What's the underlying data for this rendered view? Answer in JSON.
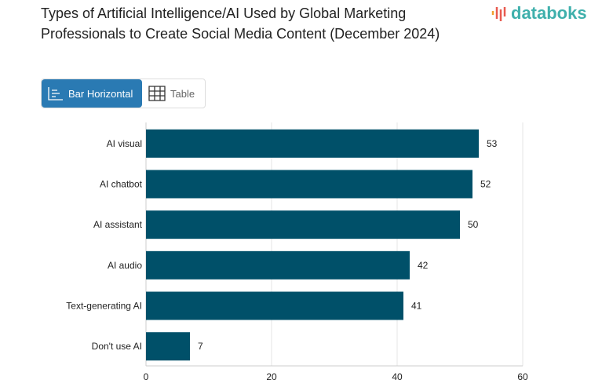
{
  "header": {
    "title": "Types of Artificial Intelligence/AI Used by Global Marketing Professionals to Create Social Media Content (December 2024)",
    "logo": "databoks"
  },
  "toggle": {
    "bar_label": "Bar Horizontal",
    "table_label": "Table"
  },
  "colors": {
    "bar": "#005069",
    "accent": "#2a7ab3",
    "logo": "#3fb0ac"
  },
  "chart_data": {
    "type": "bar",
    "orientation": "horizontal",
    "categories": [
      "AI visual",
      "AI chatbot",
      "AI assistant",
      "AI audio",
      "Text-generating AI",
      "Don't use AI"
    ],
    "values": [
      53,
      52,
      50,
      42,
      41,
      7
    ],
    "xlim": [
      0,
      60
    ],
    "xticks": [
      0,
      20,
      40,
      60
    ],
    "grid": true
  }
}
